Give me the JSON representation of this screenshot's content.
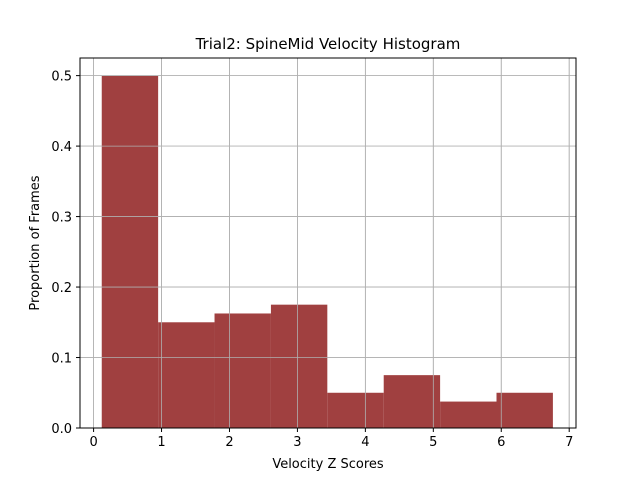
{
  "chart_data": {
    "type": "bar",
    "title": "Trial2: SpineMid Velocity Histogram",
    "xlabel": "Velocity Z Scores",
    "ylabel": "Proportion of Frames",
    "xlim": [
      -0.2,
      7.1
    ],
    "ylim": [
      0,
      0.525
    ],
    "x_ticks": [
      0,
      1,
      2,
      3,
      4,
      5,
      6,
      7
    ],
    "y_ticks": [
      0.0,
      0.1,
      0.2,
      0.3,
      0.4,
      0.5
    ],
    "y_tick_labels": [
      "0.0",
      "0.1",
      "0.2",
      "0.3",
      "0.4",
      "0.5"
    ],
    "grid": true,
    "bar_color": "#a04040",
    "bins": [
      {
        "x0": 0.12,
        "x1": 0.95,
        "value": 0.5
      },
      {
        "x0": 0.95,
        "x1": 1.78,
        "value": 0.15
      },
      {
        "x0": 1.78,
        "x1": 2.61,
        "value": 0.1625
      },
      {
        "x0": 2.61,
        "x1": 3.44,
        "value": 0.175
      },
      {
        "x0": 3.44,
        "x1": 4.27,
        "value": 0.05
      },
      {
        "x0": 4.27,
        "x1": 5.1,
        "value": 0.075
      },
      {
        "x0": 5.1,
        "x1": 5.93,
        "value": 0.0375
      },
      {
        "x0": 5.93,
        "x1": 6.76,
        "value": 0.05
      }
    ]
  }
}
